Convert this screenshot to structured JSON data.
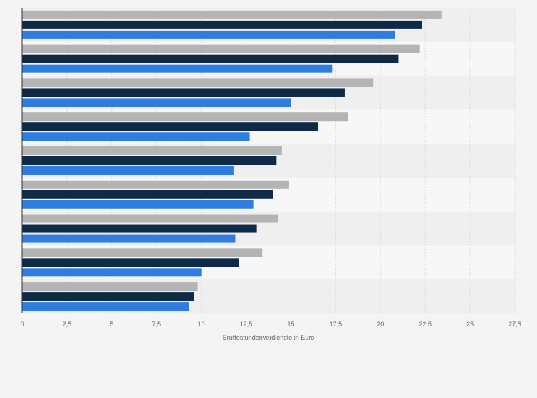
{
  "chart_data": {
    "type": "bar",
    "orientation": "horizontal",
    "categories": [
      "",
      "",
      "",
      "",
      "",
      "",
      "",
      "",
      ""
    ],
    "series": [
      {
        "color": "#b4b4b4",
        "values": [
          23.4,
          22.2,
          19.6,
          18.2,
          14.5,
          14.9,
          14.3,
          13.4,
          9.8
        ]
      },
      {
        "color": "#0e2a47",
        "values": [
          22.3,
          21.0,
          18.0,
          16.5,
          14.2,
          14.0,
          13.1,
          12.1,
          9.6
        ]
      },
      {
        "color": "#2f7de1",
        "values": [
          20.8,
          17.3,
          15.0,
          12.7,
          11.8,
          12.9,
          11.9,
          10.0,
          9.3
        ]
      }
    ],
    "x_ticks": [
      "0",
      "2,5",
      "5",
      "7,5",
      "10",
      "12,5",
      "15",
      "17,5",
      "20",
      "22,5",
      "25",
      "27,5"
    ],
    "xlabel": "Bruttostundenverdienste in Euro",
    "xlim": [
      0,
      27.5
    ],
    "grid": true,
    "band_colors": [
      "#efefef",
      "#f7f7f7"
    ]
  }
}
